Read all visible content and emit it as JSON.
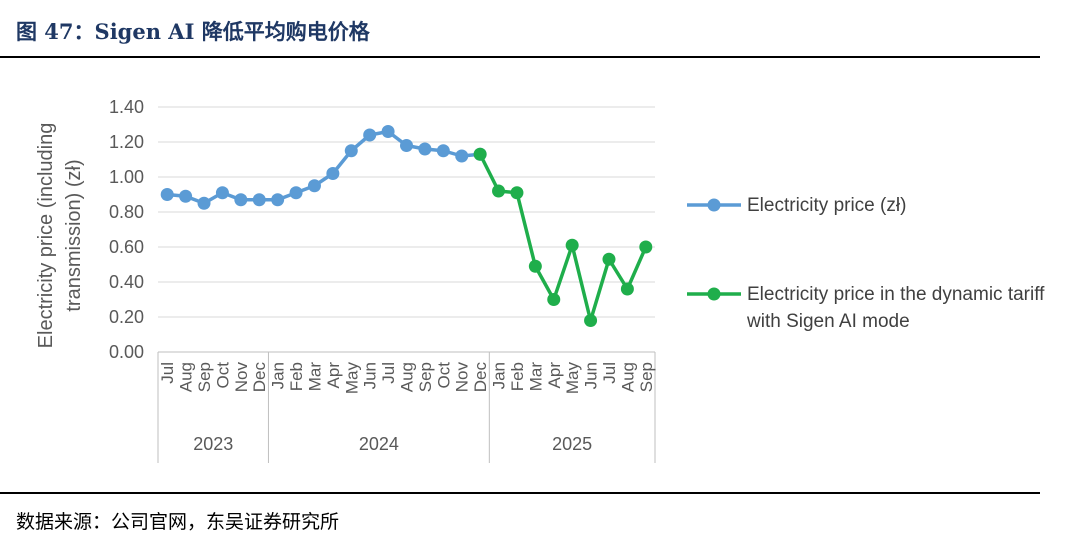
{
  "title": "图 47：Sigen AI 降低平均购电价格",
  "source": "数据来源：公司官网，东吴证券研究所",
  "chart_data": {
    "type": "line",
    "ylabel": [
      "Electricity price (including",
      "transmission) (zł)"
    ],
    "groups": [
      {
        "label": "2023",
        "months": [
          "Jul",
          "Aug",
          "Sep",
          "Oct",
          "Nov",
          "Dec"
        ]
      },
      {
        "label": "2024",
        "months": [
          "Jan",
          "Feb",
          "Mar",
          "Apr",
          "May",
          "Jun",
          "Jul",
          "Aug",
          "Sep",
          "Oct",
          "Nov",
          "Dec"
        ]
      },
      {
        "label": "2025",
        "months": [
          "Jan",
          "Feb",
          "Mar",
          "Apr",
          "May",
          "Jun",
          "Jul",
          "Aug",
          "Sep"
        ]
      }
    ],
    "series": [
      {
        "name": "Electricity price (zł)",
        "color": "#5b9bd5",
        "values": [
          0.9,
          0.89,
          0.85,
          0.91,
          0.87,
          0.87,
          0.87,
          0.91,
          0.95,
          1.02,
          1.15,
          1.24,
          1.26,
          1.18,
          1.16,
          1.15,
          1.12,
          1.13,
          null,
          null,
          null,
          null,
          null,
          null,
          null,
          null,
          null
        ]
      },
      {
        "name": "Electricity price in the dynamic tariff with Sigen AI mode",
        "color": "#1fae4b",
        "values": [
          null,
          null,
          null,
          null,
          null,
          null,
          null,
          null,
          null,
          null,
          null,
          null,
          null,
          null,
          null,
          null,
          null,
          1.13,
          0.92,
          0.91,
          0.49,
          0.3,
          0.61,
          0.18,
          0.53,
          0.36,
          0.6
        ]
      }
    ],
    "ylim": [
      0,
      1.4
    ],
    "yticks": [
      {
        "value": 0,
        "label": "0.00"
      },
      {
        "value": 0.2,
        "label": "0.20"
      },
      {
        "value": 0.4,
        "label": "0.40"
      },
      {
        "value": 0.6,
        "label": "0.60"
      },
      {
        "value": 0.8,
        "label": "0.80"
      },
      {
        "value": 1,
        "label": "1.00"
      },
      {
        "value": 1.2,
        "label": "1.20"
      },
      {
        "value": 1.4,
        "label": "1.40"
      }
    ],
    "grid": true
  }
}
